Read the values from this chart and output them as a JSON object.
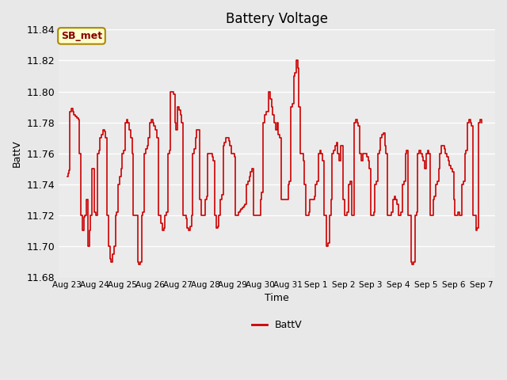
{
  "title": "Battery Voltage",
  "xlabel": "Time",
  "ylabel": "BattV",
  "legend_label": "BattV",
  "legend_line_color": "#cc0000",
  "annotation_text": "SB_met",
  "annotation_bg": "#ffffcc",
  "annotation_border": "#aa8800",
  "annotation_text_color": "#880000",
  "ylim": [
    11.68,
    11.84
  ],
  "yticks": [
    11.68,
    11.7,
    11.72,
    11.74,
    11.76,
    11.78,
    11.8,
    11.82,
    11.84
  ],
  "bg_color": "#e8e8e8",
  "plot_bg_color": "#ebebeb",
  "line_color": "#cc0000",
  "x_labels": [
    "Aug 23",
    "Aug 24",
    "Aug 25",
    "Aug 26",
    "Aug 27",
    "Aug 28",
    "Aug 29",
    "Aug 30",
    "Aug 31",
    "Sep 1",
    "Sep 2",
    "Sep 3",
    "Sep 4",
    "Sep 5",
    "Sep 6",
    "Sep 7"
  ],
  "x_positions": [
    0,
    1,
    2,
    3,
    4,
    5,
    6,
    7,
    8,
    9,
    10,
    11,
    12,
    13,
    14,
    15
  ],
  "data_x": [
    0.0,
    0.05,
    0.08,
    0.1,
    0.15,
    0.2,
    0.25,
    0.3,
    0.35,
    0.4,
    0.45,
    0.5,
    0.55,
    0.6,
    0.65,
    0.7,
    0.75,
    0.8,
    0.85,
    0.9,
    0.95,
    1.0,
    1.05,
    1.1,
    1.15,
    1.2,
    1.25,
    1.3,
    1.35,
    1.4,
    1.45,
    1.5,
    1.55,
    1.6,
    1.65,
    1.7,
    1.75,
    1.8,
    1.85,
    1.9,
    1.95,
    2.0,
    2.05,
    2.1,
    2.15,
    2.2,
    2.25,
    2.3,
    2.35,
    2.4,
    2.45,
    2.5,
    2.55,
    2.6,
    2.65,
    2.7,
    2.75,
    2.8,
    2.85,
    2.9,
    2.95,
    3.0,
    3.05,
    3.1,
    3.15,
    3.2,
    3.25,
    3.3,
    3.35,
    3.4,
    3.45,
    3.5,
    3.55,
    3.6,
    3.65,
    3.7,
    3.75,
    3.8,
    3.85,
    3.9,
    3.95,
    4.0,
    4.05,
    4.1,
    4.15,
    4.2,
    4.25,
    4.3,
    4.35,
    4.4,
    4.45,
    4.5,
    4.55,
    4.6,
    4.65,
    4.7,
    4.75,
    4.8,
    4.85,
    4.9,
    4.95,
    5.0,
    5.05,
    5.1,
    5.15,
    5.2,
    5.25,
    5.3,
    5.35,
    5.4,
    5.45,
    5.5,
    5.55,
    5.6,
    5.65,
    5.7,
    5.75,
    5.8,
    5.85,
    5.9,
    5.95,
    6.0,
    6.05,
    6.1,
    6.15,
    6.2,
    6.25,
    6.3,
    6.35,
    6.4,
    6.45,
    6.5,
    6.55,
    6.6,
    6.65,
    6.7,
    6.75,
    6.8,
    6.85,
    6.9,
    6.95,
    7.0,
    7.05,
    7.1,
    7.15,
    7.2,
    7.25,
    7.3,
    7.35,
    7.4,
    7.45,
    7.5,
    7.55,
    7.6,
    7.65,
    7.7,
    7.75,
    7.8,
    7.85,
    7.9,
    7.95,
    8.0,
    8.05,
    8.1,
    8.15,
    8.2,
    8.25,
    8.3,
    8.35,
    8.4,
    8.45,
    8.5,
    8.55,
    8.6,
    8.65,
    8.7,
    8.75,
    8.8,
    8.85,
    8.9,
    8.95,
    9.0,
    9.05,
    9.1,
    9.15,
    9.2,
    9.25,
    9.3,
    9.35,
    9.4,
    9.45,
    9.5,
    9.55,
    9.6,
    9.65,
    9.7,
    9.75,
    9.8,
    9.85,
    9.9,
    9.95,
    10.0,
    10.05,
    10.1,
    10.15,
    10.2,
    10.25,
    10.3,
    10.35,
    10.4,
    10.45,
    10.5,
    10.55,
    10.6,
    10.65,
    10.7,
    10.75,
    10.8,
    10.85,
    10.9,
    10.95,
    11.0,
    11.05,
    11.1,
    11.15,
    11.2,
    11.25,
    11.3,
    11.35,
    11.4,
    11.45,
    11.5,
    11.55,
    11.6,
    11.65,
    11.7,
    11.75,
    11.8,
    11.85,
    11.9,
    11.95,
    12.0,
    12.05,
    12.1,
    12.15,
    12.2,
    12.25,
    12.3,
    12.35,
    12.4,
    12.45,
    12.5,
    12.55,
    12.6,
    12.65,
    12.7,
    12.75,
    12.8,
    12.85,
    12.9,
    12.95,
    13.0,
    13.05,
    13.1,
    13.15,
    13.2,
    13.25,
    13.3,
    13.35,
    13.4,
    13.45,
    13.5,
    13.55,
    13.6,
    13.65,
    13.7,
    13.75,
    13.8,
    13.85,
    13.9,
    13.95,
    14.0,
    14.05,
    14.1,
    14.15,
    14.2,
    14.25,
    14.3,
    14.35,
    14.4,
    14.45,
    14.5,
    14.55,
    14.6,
    14.65,
    14.7,
    14.75,
    14.8,
    14.85,
    14.9,
    14.95,
    15.0
  ],
  "data_y": [
    11.745,
    11.747,
    11.749,
    11.787,
    11.789,
    11.787,
    11.785,
    11.784,
    11.783,
    11.782,
    11.76,
    11.72,
    11.71,
    11.719,
    11.72,
    11.73,
    11.7,
    11.71,
    11.72,
    11.75,
    11.75,
    11.722,
    11.72,
    11.76,
    11.762,
    11.77,
    11.772,
    11.775,
    11.774,
    11.77,
    11.72,
    11.7,
    11.692,
    11.69,
    11.695,
    11.7,
    11.72,
    11.722,
    11.74,
    11.745,
    11.75,
    11.76,
    11.762,
    11.78,
    11.782,
    11.78,
    11.775,
    11.77,
    11.76,
    11.72,
    11.72,
    11.72,
    11.69,
    11.688,
    11.69,
    11.72,
    11.722,
    11.76,
    11.763,
    11.765,
    11.77,
    11.78,
    11.782,
    11.78,
    11.778,
    11.775,
    11.77,
    11.72,
    11.72,
    11.715,
    11.71,
    11.712,
    11.72,
    11.722,
    11.76,
    11.762,
    11.8,
    11.8,
    11.798,
    11.78,
    11.775,
    11.79,
    11.788,
    11.785,
    11.78,
    11.72,
    11.72,
    11.718,
    11.712,
    11.71,
    11.713,
    11.72,
    11.76,
    11.763,
    11.77,
    11.775,
    11.775,
    11.73,
    11.72,
    11.72,
    11.72,
    11.73,
    11.732,
    11.76,
    11.76,
    11.76,
    11.758,
    11.755,
    11.72,
    11.712,
    11.713,
    11.72,
    11.73,
    11.733,
    11.765,
    11.767,
    11.77,
    11.77,
    11.768,
    11.765,
    11.76,
    11.76,
    11.758,
    11.72,
    11.72,
    11.722,
    11.723,
    11.724,
    11.725,
    11.726,
    11.727,
    11.74,
    11.742,
    11.745,
    11.748,
    11.75,
    11.72,
    11.72,
    11.72,
    11.72,
    11.72,
    11.73,
    11.735,
    11.78,
    11.785,
    11.787,
    11.787,
    11.8,
    11.795,
    11.79,
    11.785,
    11.78,
    11.775,
    11.78,
    11.772,
    11.77,
    11.73,
    11.73,
    11.73,
    11.73,
    11.73,
    11.74,
    11.742,
    11.79,
    11.792,
    11.81,
    11.812,
    11.82,
    11.815,
    11.79,
    11.76,
    11.76,
    11.755,
    11.74,
    11.72,
    11.72,
    11.722,
    11.73,
    11.73,
    11.73,
    11.732,
    11.74,
    11.742,
    11.76,
    11.762,
    11.76,
    11.755,
    11.72,
    11.72,
    11.7,
    11.702,
    11.72,
    11.73,
    11.76,
    11.762,
    11.765,
    11.767,
    11.76,
    11.755,
    11.765,
    11.765,
    11.73,
    11.72,
    11.72,
    11.722,
    11.74,
    11.742,
    11.72,
    11.72,
    11.78,
    11.782,
    11.78,
    11.778,
    11.76,
    11.755,
    11.76,
    11.76,
    11.76,
    11.758,
    11.755,
    11.75,
    11.72,
    11.72,
    11.722,
    11.74,
    11.742,
    11.76,
    11.762,
    11.77,
    11.772,
    11.773,
    11.765,
    11.76,
    11.72,
    11.72,
    11.72,
    11.722,
    11.73,
    11.732,
    11.73,
    11.727,
    11.72,
    11.72,
    11.722,
    11.74,
    11.742,
    11.76,
    11.762,
    11.72,
    11.72,
    11.69,
    11.688,
    11.69,
    11.72,
    11.722,
    11.76,
    11.762,
    11.76,
    11.758,
    11.755,
    11.75,
    11.76,
    11.762,
    11.76,
    11.72,
    11.72,
    11.73,
    11.732,
    11.74,
    11.742,
    11.75,
    11.76,
    11.765,
    11.765,
    11.763,
    11.76,
    11.758,
    11.755,
    11.752,
    11.75,
    11.748,
    11.73,
    11.72,
    11.72,
    11.722,
    11.72,
    11.72,
    11.74,
    11.742,
    11.76,
    11.762,
    11.78,
    11.782,
    11.78,
    11.778,
    11.72,
    11.72,
    11.71,
    11.712,
    11.78,
    11.782,
    11.78
  ]
}
